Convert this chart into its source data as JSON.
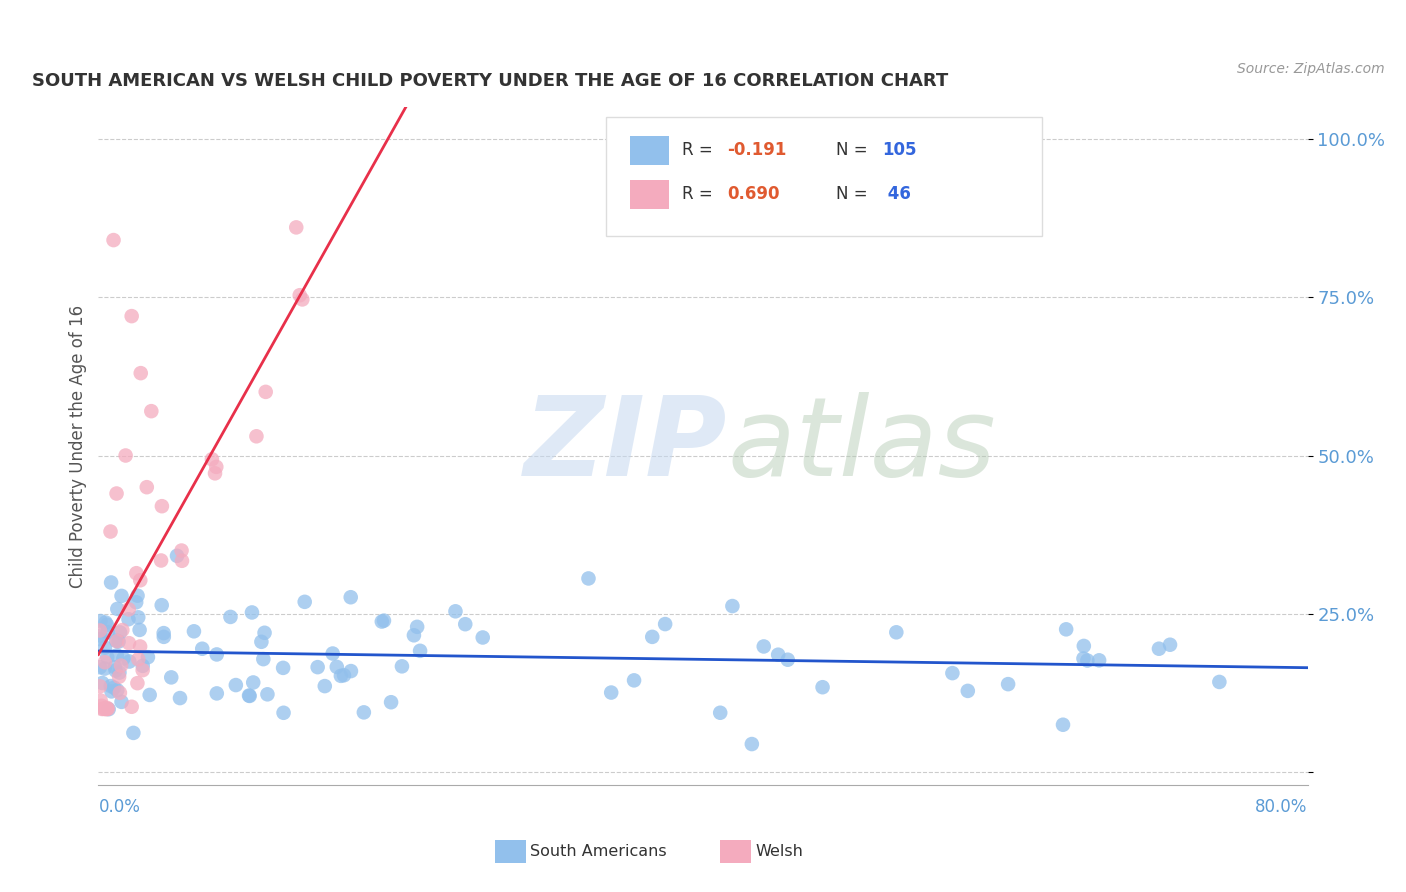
{
  "title": "SOUTH AMERICAN VS WELSH CHILD POVERTY UNDER THE AGE OF 16 CORRELATION CHART",
  "source": "Source: ZipAtlas.com",
  "ylabel": "Child Poverty Under the Age of 16",
  "xlim": [
    0.0,
    0.8
  ],
  "ylim": [
    -0.02,
    1.05
  ],
  "yticks": [
    0.0,
    0.25,
    0.5,
    0.75,
    1.0
  ],
  "ytick_labels": [
    "",
    "25.0%",
    "50.0%",
    "75.0%",
    "100.0%"
  ],
  "legend_R_blue": "-0.191",
  "legend_N_blue": "105",
  "legend_R_pink": "0.690",
  "legend_N_pink": "46",
  "blue_color": "#92C0EC",
  "pink_color": "#F4ABBE",
  "blue_line_color": "#2255CC",
  "pink_line_color": "#E8304A",
  "grid_color": "#CCCCCC",
  "title_color": "#333333",
  "source_color": "#999999",
  "axis_label_color": "#5B9BD5",
  "ylabel_color": "#555555"
}
